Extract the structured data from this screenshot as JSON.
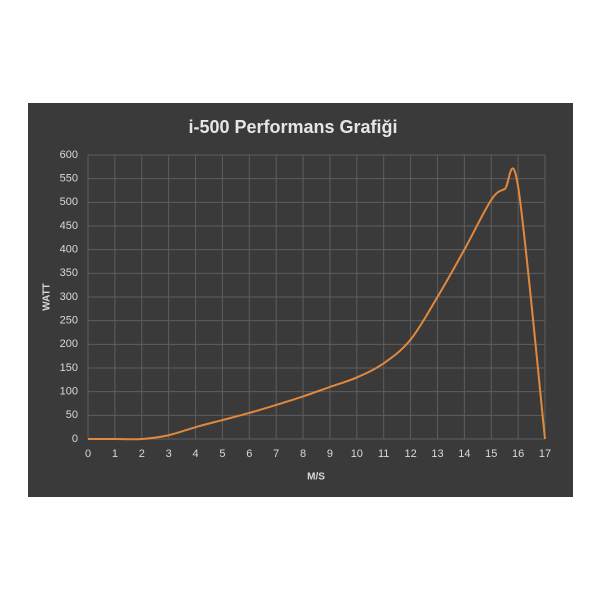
{
  "chart_data": {
    "type": "line",
    "title": "i-500 Performans Grafiği",
    "x_label": "M/S",
    "y_label": "WATT",
    "x": [
      0,
      1,
      2,
      3,
      4,
      5,
      6,
      7,
      8,
      9,
      10,
      11,
      12,
      13,
      14,
      15,
      15.5,
      16,
      17
    ],
    "series": [
      {
        "name": "i-500",
        "color": "#e0893e",
        "values": [
          0,
          0,
          0,
          8,
          25,
          40,
          55,
          72,
          90,
          110,
          130,
          160,
          210,
          300,
          400,
          505,
          528,
          533,
          0
        ]
      }
    ],
    "xlim": [
      0,
      17
    ],
    "xticks": [
      0,
      1,
      2,
      3,
      4,
      5,
      6,
      7,
      8,
      9,
      10,
      11,
      12,
      13,
      14,
      15,
      16,
      17
    ],
    "ylim": [
      0,
      600
    ],
    "yticks": [
      0,
      50,
      100,
      150,
      200,
      250,
      300,
      350,
      400,
      450,
      500,
      550,
      600
    ],
    "grid": true,
    "legend": false
  }
}
